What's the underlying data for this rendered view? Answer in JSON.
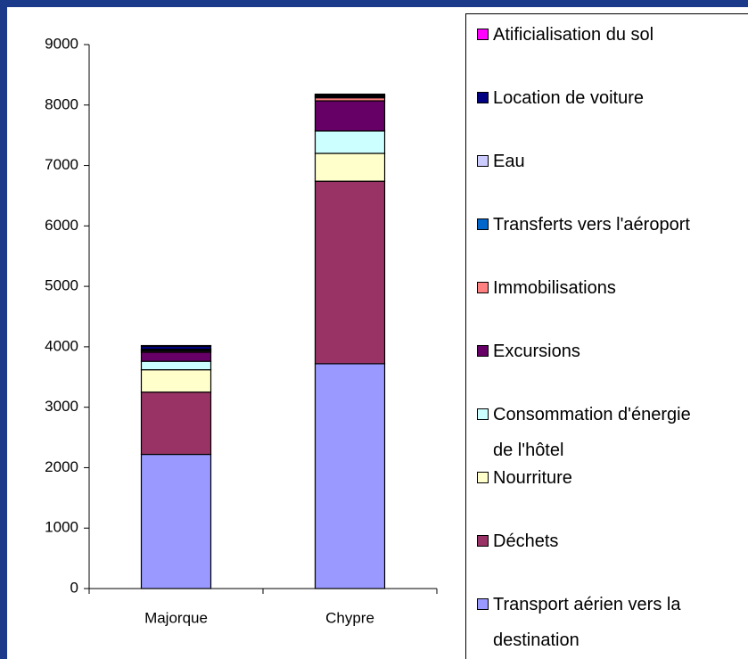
{
  "chart_data": {
    "type": "stacked_bar",
    "categories": [
      "Majorque",
      "Chypre"
    ],
    "series": [
      {
        "name": "Transport aérien vers la destination",
        "color": "#9999ff",
        "values": [
          2220,
          3720
        ]
      },
      {
        "name": "Déchets",
        "color": "#993366",
        "values": [
          1030,
          3020
        ]
      },
      {
        "name": "Nourriture",
        "color": "#ffffcc",
        "values": [
          370,
          460
        ]
      },
      {
        "name": "Consommation d'énergie de l'hôtel",
        "color": "#ccffff",
        "values": [
          140,
          370
        ]
      },
      {
        "name": "Excursions",
        "color": "#660066",
        "values": [
          150,
          500
        ]
      },
      {
        "name": "Immobilisations",
        "color": "#ff8080",
        "values": [
          20,
          50
        ]
      },
      {
        "name": "Transferts vers l'aéroport",
        "color": "#0066cc",
        "values": [
          20,
          20
        ]
      },
      {
        "name": "Eau",
        "color": "#ccccff",
        "values": [
          10,
          10
        ]
      },
      {
        "name": "Location de voiture",
        "color": "#000080",
        "values": [
          50,
          20
        ]
      },
      {
        "name": "Atificialisation du sol",
        "color": "#ff00ff",
        "values": [
          10,
          10
        ]
      }
    ],
    "ylim": [
      0,
      9000
    ],
    "yticks": [
      0,
      1000,
      2000,
      3000,
      4000,
      5000,
      6000,
      7000,
      8000,
      9000
    ],
    "grid": false,
    "legend": "right"
  }
}
